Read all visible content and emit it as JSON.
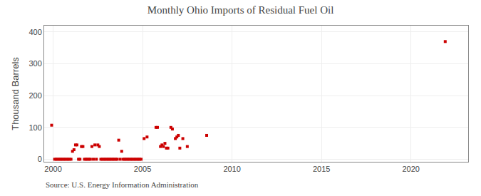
{
  "chart_data": {
    "type": "scatter",
    "title": "Monthly Ohio Imports of Residual Fuel Oil",
    "ylabel": "Thousand Barrels",
    "annotations": [
      "Source: U.S. Energy Information Administration"
    ],
    "color": "#cc0000",
    "marker": "square",
    "grid": true,
    "xlim": [
      1999.5,
      2023.2
    ],
    "ylim": [
      -8,
      420
    ],
    "xticks": [
      2000,
      2005,
      2010,
      2015,
      2020
    ],
    "yticks": [
      0,
      100,
      200,
      300,
      400
    ],
    "x": [
      1999.917,
      2000.083,
      2000.167,
      2000.25,
      2000.333,
      2000.417,
      2000.5,
      2000.583,
      2000.667,
      2000.75,
      2000.833,
      2000.917,
      2001.0,
      2001.083,
      2001.167,
      2001.25,
      2001.333,
      2001.417,
      2001.5,
      2001.583,
      2001.667,
      2001.75,
      2001.833,
      2001.917,
      2002.0,
      2002.083,
      2002.167,
      2002.25,
      2002.333,
      2002.417,
      2002.5,
      2002.583,
      2002.667,
      2002.75,
      2002.833,
      2002.917,
      2003.0,
      2003.083,
      2003.167,
      2003.25,
      2003.333,
      2003.417,
      2003.5,
      2003.583,
      2003.667,
      2003.75,
      2003.833,
      2003.917,
      2004.0,
      2004.083,
      2004.167,
      2004.25,
      2004.333,
      2004.417,
      2004.5,
      2004.583,
      2004.667,
      2004.75,
      2004.833,
      2004.917,
      2005.083,
      2005.25,
      2005.75,
      2005.833,
      2006.0,
      2006.083,
      2006.167,
      2006.25,
      2006.333,
      2006.417,
      2006.583,
      2006.667,
      2006.833,
      2006.917,
      2007.0,
      2007.083,
      2007.25,
      2007.5,
      2008.583,
      2021.917
    ],
    "values": [
      107,
      0,
      0,
      0,
      0,
      0,
      0,
      0,
      0,
      0,
      0,
      0,
      0,
      25,
      30,
      45,
      45,
      0,
      0,
      40,
      40,
      0,
      0,
      0,
      0,
      0,
      40,
      0,
      45,
      0,
      45,
      40,
      0,
      0,
      0,
      0,
      0,
      0,
      0,
      0,
      0,
      0,
      0,
      0,
      60,
      0,
      25,
      0,
      0,
      0,
      0,
      0,
      0,
      0,
      0,
      0,
      0,
      0,
      0,
      0,
      65,
      70,
      100,
      100,
      40,
      45,
      40,
      50,
      35,
      35,
      100,
      95,
      65,
      70,
      75,
      35,
      65,
      40,
      75,
      370
    ]
  }
}
